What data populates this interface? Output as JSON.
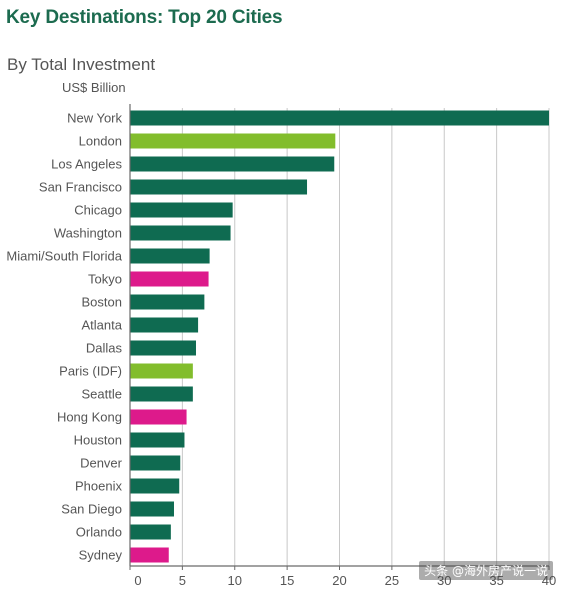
{
  "title": "Key Destinations: Top 20 Cities",
  "subtitle": "By Total Investment",
  "unit_label": "US$ Billion",
  "watermark": "头条 @海外房产说一说",
  "colors": {
    "title": "#1c6b4f",
    "text": "#555555",
    "axis": "#6a6a6a",
    "grid": "#c8c8c8",
    "dark_green": "#0f6b51",
    "light_green": "#82bd2c",
    "magenta": "#dd1a8b"
  },
  "chart_data": {
    "type": "bar",
    "orientation": "horizontal",
    "title": "Key Destinations: Top 20 Cities",
    "subtitle": "By Total Investment",
    "xlabel": "US$ Billion",
    "ylabel": "",
    "xlim": [
      0,
      40
    ],
    "xticks": [
      0,
      5,
      10,
      15,
      20,
      25,
      30,
      35,
      40
    ],
    "grid": true,
    "legend": "none",
    "categories": [
      "New York",
      "London",
      "Los Angeles",
      "San Francisco",
      "Chicago",
      "Washington",
      "Miami/South Florida",
      "Tokyo",
      "Boston",
      "Atlanta",
      "Dallas",
      "Paris (IDF)",
      "Seattle",
      "Hong Kong",
      "Houston",
      "Denver",
      "Phoenix",
      "San Diego",
      "Orlando",
      "Sydney"
    ],
    "values": [
      40.0,
      19.6,
      19.5,
      16.9,
      9.8,
      9.6,
      7.6,
      7.5,
      7.1,
      6.5,
      6.3,
      6.0,
      6.0,
      5.4,
      5.2,
      4.8,
      4.7,
      4.2,
      3.9,
      3.7
    ],
    "bar_colors": [
      "dark_green",
      "light_green",
      "dark_green",
      "dark_green",
      "dark_green",
      "dark_green",
      "dark_green",
      "magenta",
      "dark_green",
      "dark_green",
      "dark_green",
      "light_green",
      "dark_green",
      "magenta",
      "dark_green",
      "dark_green",
      "dark_green",
      "dark_green",
      "dark_green",
      "magenta"
    ]
  }
}
